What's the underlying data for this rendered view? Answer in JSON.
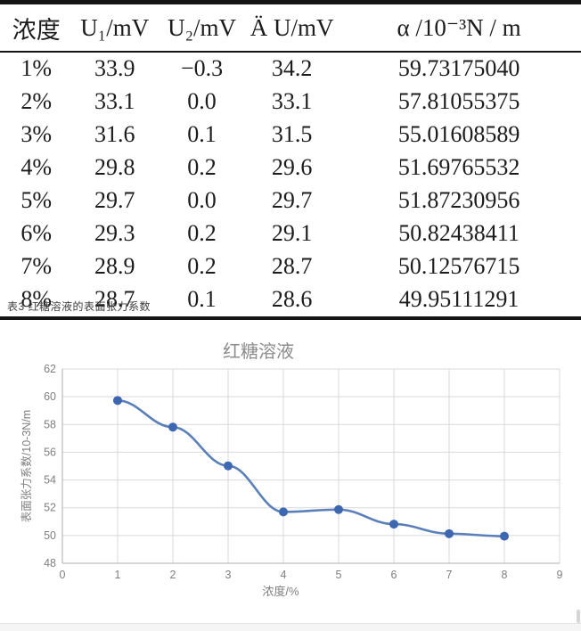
{
  "table": {
    "headers": [
      "浓度",
      "U₁/mV",
      "U₂/mV",
      "Ä U/mV",
      "α /10⁻³N / m"
    ],
    "rows": [
      [
        "1%",
        "33.9",
        "−0.3",
        "34.2",
        "59.73175040"
      ],
      [
        "2%",
        "33.1",
        "0.0",
        "33.1",
        "57.81055375"
      ],
      [
        "3%",
        "31.6",
        "0.1",
        "31.5",
        "55.01608589"
      ],
      [
        "4%",
        "29.8",
        "0.2",
        "29.6",
        "51.69765532"
      ],
      [
        "5%",
        "29.7",
        "0.0",
        "29.7",
        "51.87230956"
      ],
      [
        "6%",
        "29.3",
        "0.2",
        "29.1",
        "50.82438411"
      ],
      [
        "7%",
        "28.9",
        "0.2",
        "28.7",
        "50.12576715"
      ],
      [
        "8%",
        "28.7",
        "0.1",
        "28.6",
        "49.95111291"
      ]
    ],
    "caption": "表3 红糖溶液的表面张力系数"
  },
  "chart_data": {
    "type": "line",
    "title": "红糖溶液",
    "xlabel": "浓度/%",
    "ylabel": "表面张力系数/10-3N/m",
    "x": [
      1,
      2,
      3,
      4,
      5,
      6,
      7,
      8
    ],
    "y": [
      59.73,
      57.81,
      55.02,
      51.7,
      51.87,
      50.82,
      50.13,
      49.95
    ],
    "series_name": "红糖溶液",
    "xlim": [
      0,
      9
    ],
    "ylim": [
      48,
      62
    ],
    "xticks": [
      0,
      1,
      2,
      3,
      4,
      5,
      6,
      7,
      8,
      9
    ],
    "yticks": [
      48,
      50,
      52,
      54,
      56,
      58,
      60,
      62
    ],
    "grid": true,
    "legend_position": "none",
    "colors": {
      "line": "#5b7fb8",
      "marker": "#3d68b1",
      "grid": "#d9d9d9",
      "axis": "#bfbfbf",
      "ticks": "#7f7f7f",
      "title": "#8c8c8c"
    }
  }
}
